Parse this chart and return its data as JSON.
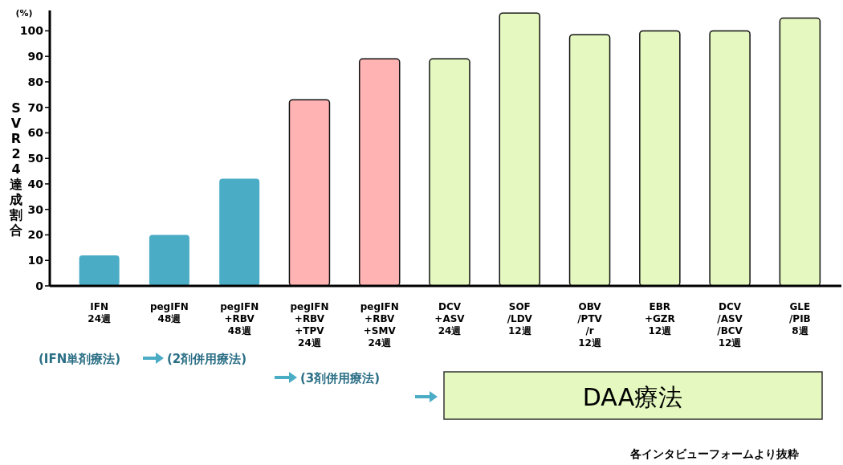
{
  "chart_data": {
    "type": "bar",
    "categories": [
      "IFN\n24週",
      "pegIFN\n48週",
      "pegIFN\n+RBV\n48週",
      "pegIFN\n+RBV\n+TPV\n24週",
      "pegIFN\n+RBV\n+SMV\n24週",
      "DCV\n+ASV\n24週",
      "SOF\n/LDV\n12週",
      "OBV\n/PTV\n/r\n12週",
      "EBR\n+GZR\n12週",
      "DCV\n/ASV\n/BCV\n12週",
      "GLE\n/PIB\n8週"
    ],
    "values": [
      12,
      20,
      42,
      73,
      89,
      89,
      107,
      98.5,
      100,
      100,
      105
    ],
    "colors": [
      "#4bacc6",
      "#4bacc6",
      "#4bacc6",
      "#ffb3b3",
      "#ffb3b3",
      "#e4f8bf",
      "#e4f8bf",
      "#e4f8bf",
      "#e4f8bf",
      "#e4f8bf",
      "#e4f8bf"
    ],
    "ylabel": "SVR24達成割合",
    "ylim": [
      0,
      108
    ],
    "yticks": [
      0,
      10,
      20,
      30,
      40,
      50,
      60,
      70,
      80,
      90,
      100
    ],
    "grid": false,
    "annotations": [
      "(%)",
      "(IFN単剤療法)",
      "(2剤併用療法)",
      "(3剤併用療法)",
      "DAA療法",
      "各インタビューフォームより抜粋"
    ]
  }
}
